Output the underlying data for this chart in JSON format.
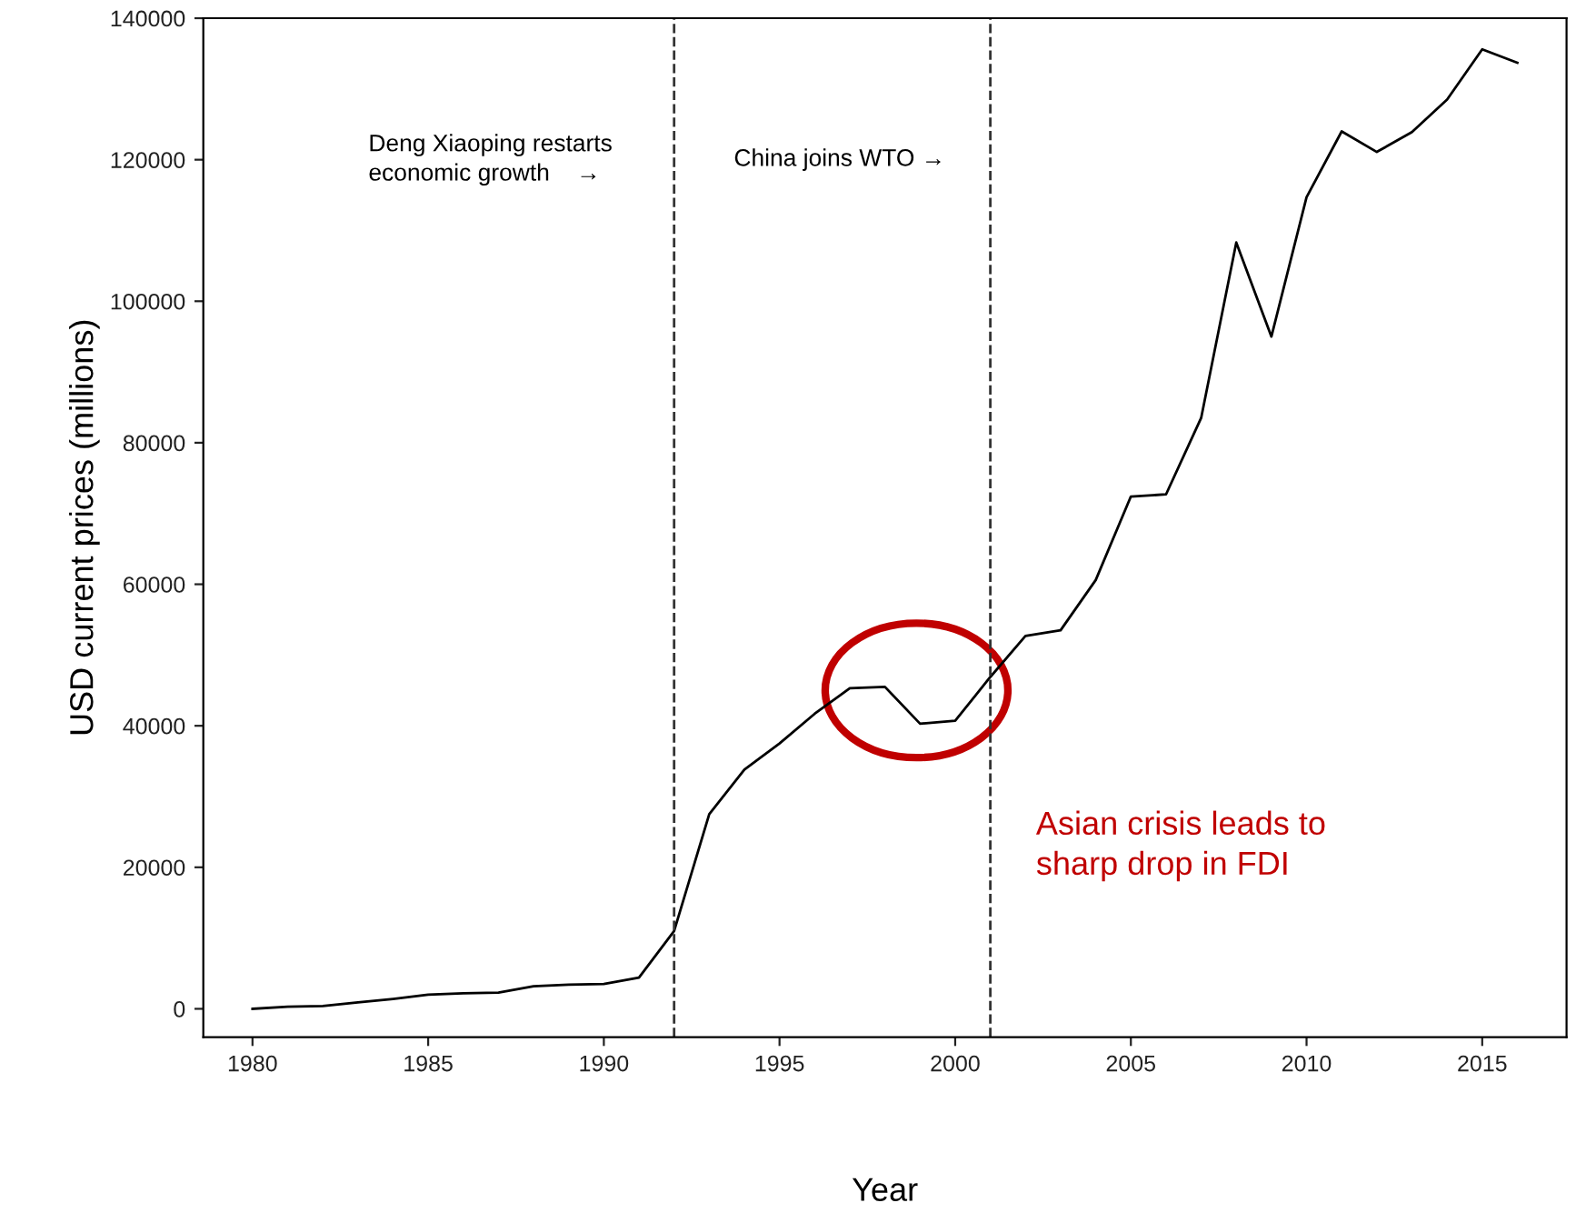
{
  "chart_data": {
    "type": "line",
    "xlabel": "Year",
    "ylabel": "USD current prices (millions)",
    "x": [
      1980,
      1981,
      1982,
      1983,
      1984,
      1985,
      1986,
      1987,
      1988,
      1989,
      1990,
      1991,
      1992,
      1993,
      1994,
      1995,
      1996,
      1997,
      1998,
      1999,
      2000,
      2001,
      2002,
      2003,
      2004,
      2005,
      2006,
      2007,
      2008,
      2009,
      2010,
      2011,
      2012,
      2013,
      2014,
      2015,
      2016
    ],
    "series": [
      {
        "color": "#000000",
        "values": [
          0,
          300,
          400,
          900,
          1400,
          2000,
          2200,
          2300,
          3200,
          3400,
          3500,
          4400,
          11000,
          27500,
          33800,
          37500,
          41700,
          45300,
          45500,
          40300,
          40700,
          46900,
          52700,
          53500,
          60600,
          72400,
          72700,
          83500,
          108300,
          95000,
          114700,
          124000,
          121100,
          123900,
          128500,
          135600,
          133700
        ]
      }
    ],
    "xlim": [
      1978.6,
      2017.4
    ],
    "ylim": [
      -4000,
      140000
    ],
    "xticks": [
      1980,
      1985,
      1990,
      1995,
      2000,
      2005,
      2010,
      2015
    ],
    "yticks": [
      0,
      20000,
      40000,
      60000,
      80000,
      100000,
      120000,
      140000
    ],
    "ref_lines": [
      {
        "axis": "x",
        "value": 1992,
        "color": "#333333",
        "line_style": "dashed"
      },
      {
        "axis": "x",
        "value": 2001,
        "color": "#333333",
        "line_style": "dashed"
      }
    ],
    "annotations": [
      "Deng Xiaoping restarts\neconomic growth    →",
      "China joins WTO →",
      "Asian crisis leads to\nsharp drop in FDI"
    ],
    "grid": false,
    "legend": false,
    "marker": "none",
    "line_style": "solid"
  }
}
